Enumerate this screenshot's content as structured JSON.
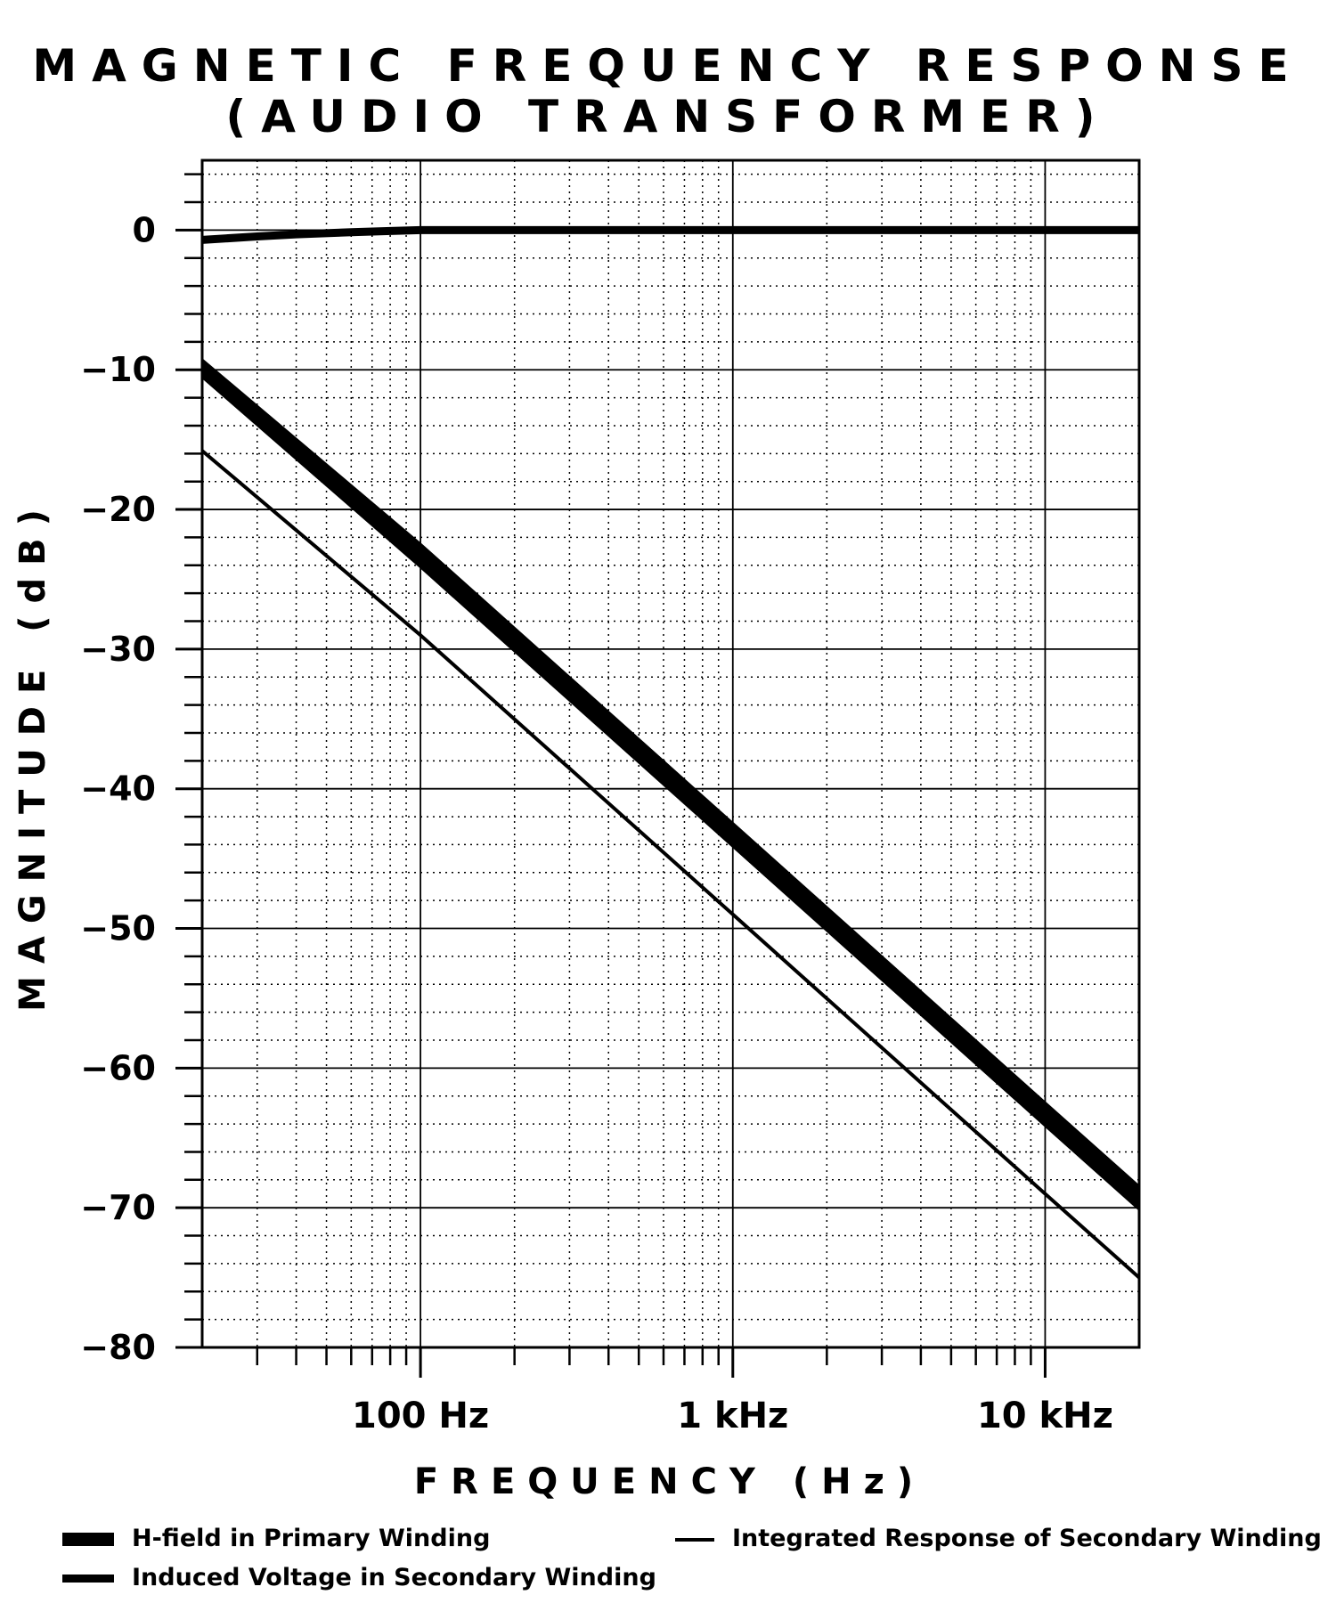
{
  "chart_data": {
    "type": "line",
    "title": "MAGNETIC FREQUENCY RESPONSE",
    "subtitle": "(AUDIO TRANSFORMER)",
    "xlabel": "FREQUENCY (Hz)",
    "ylabel": "MAGNITUDE (dB)",
    "x_scale": "log",
    "xlim": [
      20,
      20000
    ],
    "ylim": [
      -80,
      5
    ],
    "x_ticks": [
      {
        "value": 100,
        "label": "100 Hz"
      },
      {
        "value": 1000,
        "label": "1 kHz"
      },
      {
        "value": 10000,
        "label": "10 kHz"
      }
    ],
    "y_ticks": [
      {
        "value": 0,
        "label": "0"
      },
      {
        "value": -10,
        "label": "−10"
      },
      {
        "value": -20,
        "label": "−20"
      },
      {
        "value": -30,
        "label": "−30"
      },
      {
        "value": -40,
        "label": "−40"
      },
      {
        "value": -50,
        "label": "−50"
      },
      {
        "value": -60,
        "label": "−60"
      },
      {
        "value": -70,
        "label": "−70"
      },
      {
        "value": -80,
        "label": "−80"
      }
    ],
    "grid": true,
    "legend_position": "bottom",
    "series": [
      {
        "name": "H-field in Primary Winding",
        "style": "band",
        "x": [
          20,
          100,
          1000,
          10000,
          20000
        ],
        "upper": [
          -9.2,
          -22.4,
          -42.4,
          -62.4,
          -68.4
        ],
        "lower": [
          -10.6,
          -24.2,
          -44.2,
          -64.2,
          -70.2
        ]
      },
      {
        "name": "Induced Voltage in Secondary Winding",
        "style": "thick",
        "x": [
          20,
          30,
          40,
          60,
          80,
          100,
          200,
          1000,
          10000,
          20000
        ],
        "y": [
          -0.7,
          -0.45,
          -0.3,
          -0.15,
          -0.06,
          0,
          0,
          0,
          0,
          0
        ]
      },
      {
        "name": "Integrated Response of Secondary Winding",
        "style": "thin",
        "x": [
          20,
          100,
          1000,
          10000,
          20000
        ],
        "y": [
          -15.8,
          -29,
          -49,
          -69,
          -75
        ]
      }
    ],
    "colors": {
      "line": "#000000",
      "grid": "#000000",
      "background": "#ffffff"
    }
  }
}
